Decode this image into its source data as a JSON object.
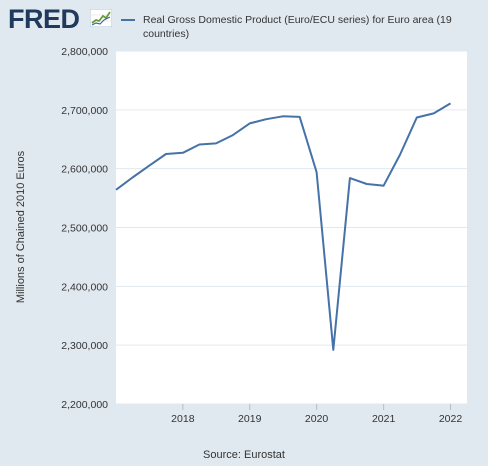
{
  "header": {
    "logo_text": "FRED",
    "logo_icon": "fred-logo-chart-icon"
  },
  "legend": {
    "label": "Real Gross Domestic Product (Euro/ECU series) for Euro area (19 countries)",
    "color": "#4572a7"
  },
  "footer": {
    "source": "Source: Eurostat"
  },
  "chart_data": {
    "type": "line",
    "title": "",
    "xlabel": "",
    "ylabel": "Millions of Chained 2010 Euros",
    "ylim": [
      2200000,
      2800000
    ],
    "xlim": [
      "2017-01-01",
      "2022-04-01"
    ],
    "yticks": [
      2200000,
      2300000,
      2400000,
      2500000,
      2600000,
      2700000,
      2800000
    ],
    "ytick_labels": [
      "2,200,000",
      "2,300,000",
      "2,400,000",
      "2,500,000",
      "2,600,000",
      "2,700,000",
      "2,800,000"
    ],
    "xticks": [
      "2018-01-01",
      "2019-01-01",
      "2020-01-01",
      "2021-01-01",
      "2022-01-01"
    ],
    "xtick_labels": [
      "2018",
      "2019",
      "2020",
      "2021",
      "2022"
    ],
    "grid": "horizontal",
    "legend_position": "top",
    "line_color": "#4572a7",
    "series": [
      {
        "x": [
          "2017-01-01",
          "2017-04-01",
          "2017-07-01",
          "2017-10-01",
          "2018-01-01",
          "2018-04-01",
          "2018-07-01",
          "2018-10-01",
          "2019-01-01",
          "2019-04-01",
          "2019-07-01",
          "2019-10-01",
          "2020-01-01",
          "2020-04-01",
          "2020-07-01",
          "2020-10-01",
          "2021-01-01",
          "2021-04-01",
          "2021-07-01",
          "2021-10-01",
          "2022-01-01"
        ],
        "values": [
          2564000,
          2585000,
          2605000,
          2625000,
          2627000,
          2641000,
          2643000,
          2657000,
          2677000,
          2684000,
          2689000,
          2688000,
          2594000,
          2292000,
          2584000,
          2574000,
          2571000,
          2624000,
          2687000,
          2694000,
          2711000
        ]
      }
    ]
  }
}
